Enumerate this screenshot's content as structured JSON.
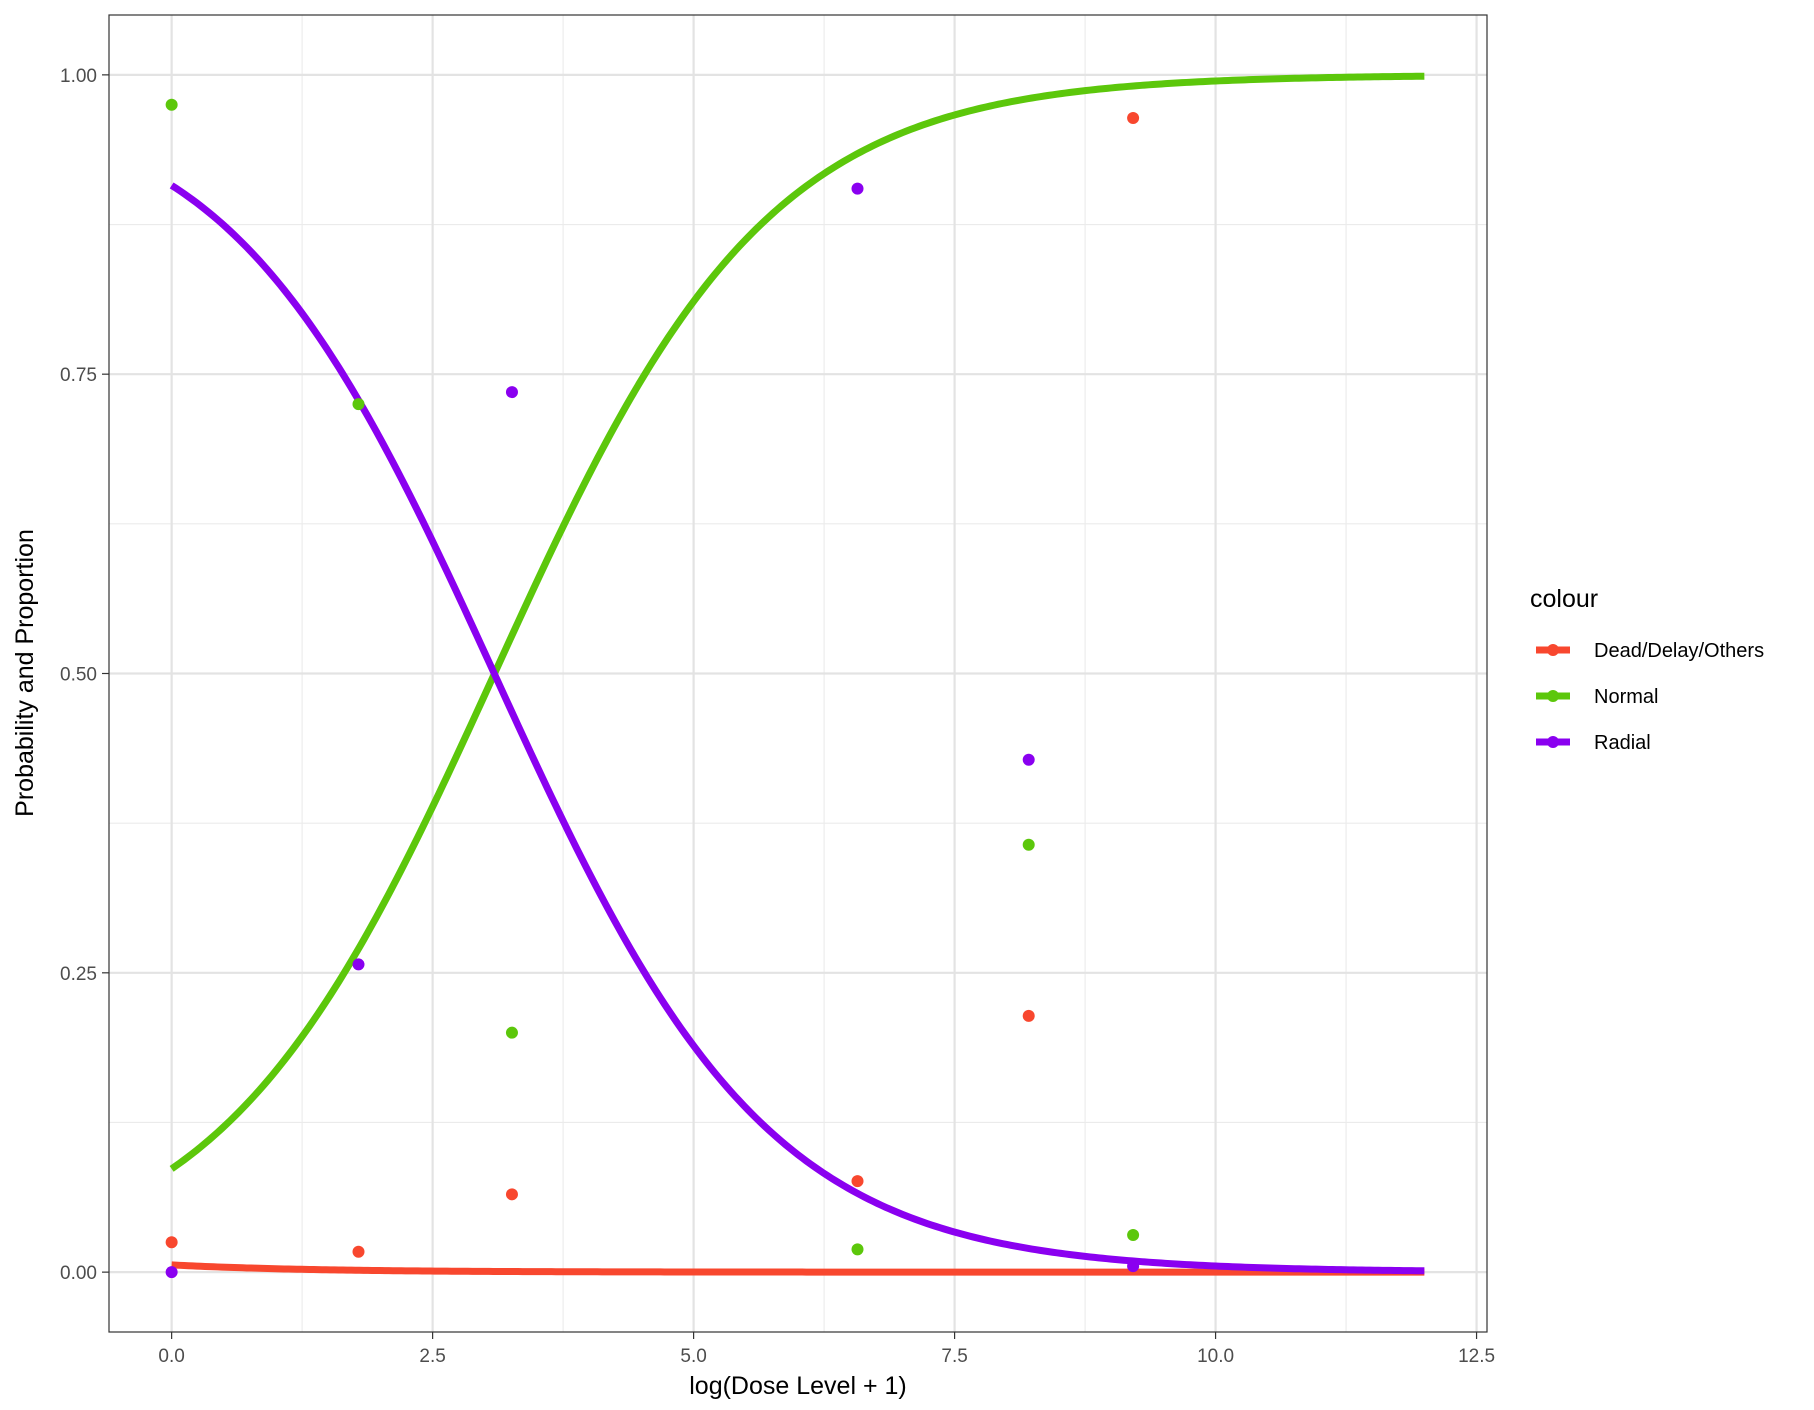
{
  "chart_data": {
    "type": "line",
    "title": "",
    "xlabel": "log(Dose Level + 1)",
    "ylabel": "Probability and Proportion",
    "xlim": [
      -0.6,
      12.6
    ],
    "ylim": [
      -0.05,
      1.05
    ],
    "x_ticks": [
      0,
      2.5,
      5,
      7.5,
      10,
      12.5
    ],
    "x_tick_labels": [
      "0.0",
      "2.5",
      "5.0",
      "7.5",
      "10.0",
      "12.5"
    ],
    "y_ticks": [
      0,
      0.25,
      0.5,
      0.75,
      1
    ],
    "y_tick_labels": [
      "0.00",
      "0.25",
      "0.50",
      "0.75",
      "1.00"
    ],
    "grid": true,
    "theme": "bw",
    "legend": {
      "title": "colour",
      "position": "right",
      "entries": [
        "Dead/Delay/Others",
        "Normal",
        "Radial"
      ]
    },
    "curves": {
      "x_range": [
        0,
        12
      ],
      "model": "ordinal logistic",
      "cutpoints": [
        -2.36,
        5.1
      ],
      "slope": -0.763
    },
    "series": [
      {
        "name": "Dead/Delay/Others",
        "color": "#F8472E",
        "points": {
          "x": [
            0,
            1.79,
            3.26,
            6.57,
            8.21,
            9.21
          ],
          "y": [
            0.025,
            0.017,
            0.065,
            0.076,
            0.214,
            0.964
          ]
        }
      },
      {
        "name": "Normal",
        "color": "#5CC70B",
        "points": {
          "x": [
            0,
            1.79,
            3.26,
            6.57,
            8.21,
            9.21
          ],
          "y": [
            0.975,
            0.725,
            0.2,
            0.019,
            0.357,
            0.031
          ]
        }
      },
      {
        "name": "Radial",
        "color": "#8A00F0",
        "points": {
          "x": [
            0,
            1.79,
            3.26,
            6.57,
            8.21,
            9.21
          ],
          "y": [
            0,
            0.257,
            0.735,
            0.905,
            0.428,
            0.005
          ]
        }
      }
    ]
  }
}
